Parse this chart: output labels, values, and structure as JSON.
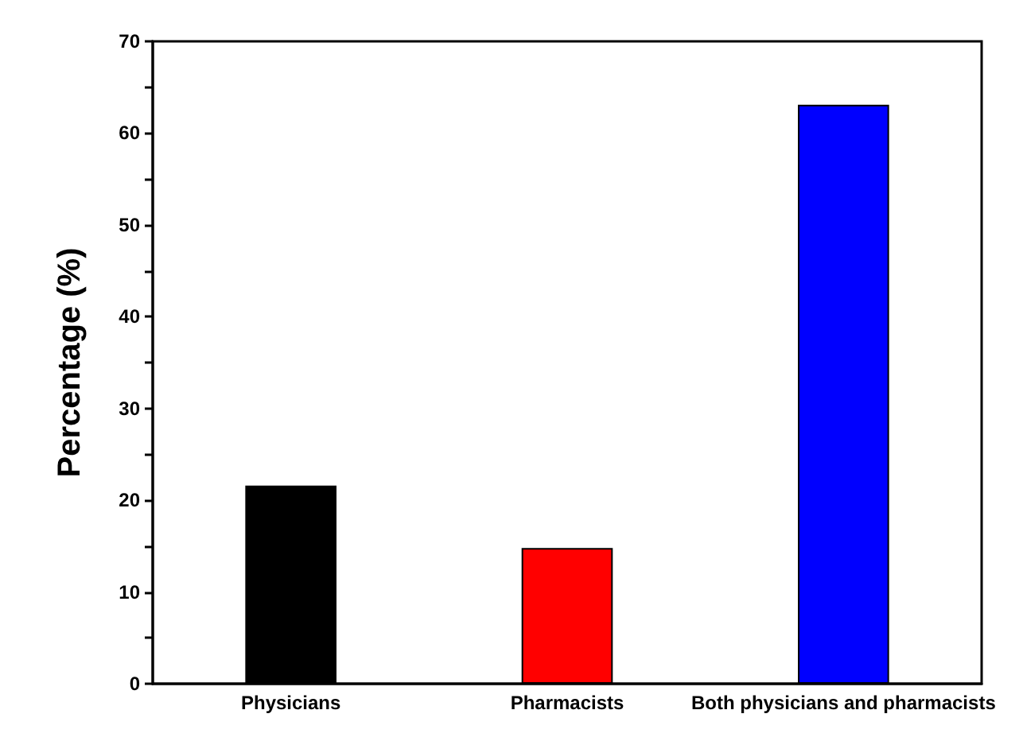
{
  "chart_data": {
    "type": "bar",
    "ylabel": "Percentage (%)",
    "categories": [
      "Physicians",
      "Pharmacists",
      "Both physicians and pharmacists"
    ],
    "values": [
      21.6,
      14.8,
      63.1
    ],
    "colors": [
      "#000000",
      "#ff0000",
      "#0000ff"
    ],
    "ylim": [
      0,
      70
    ],
    "yticks": [
      0,
      {
        "value": 5,
        "label": null
      },
      10,
      {
        "value": 15,
        "label": null
      },
      20,
      {
        "value": 25,
        "label": null
      },
      30,
      {
        "value": 35,
        "label": null
      },
      40,
      {
        "value": 45,
        "label": null
      },
      50,
      {
        "value": 55,
        "label": null
      },
      60,
      {
        "value": 65,
        "label": null
      },
      70
    ],
    "grid": false
  }
}
